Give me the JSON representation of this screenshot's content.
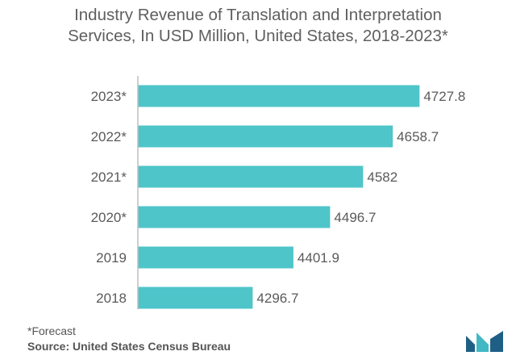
{
  "chart_data": {
    "type": "bar",
    "orientation": "horizontal",
    "title_lines": [
      "Industry Revenue of Translation and Interpretation",
      "Services, In USD Million, United States, 2018-2023*"
    ],
    "categories": [
      "2023*",
      "2022*",
      "2021*",
      "2020*",
      "2019",
      "2018"
    ],
    "values": [
      4727.8,
      4658.7,
      4582,
      4496.7,
      4401.9,
      4296.7
    ],
    "value_labels": [
      "4727.8",
      "4658.7",
      "4582",
      "4496.7",
      "4401.9",
      "4296.7"
    ],
    "xlim": [
      4000,
      4800
    ],
    "grid": false,
    "legend": "none"
  },
  "footnote": "*Forecast",
  "source": {
    "label": "Source:",
    "text": "United States Census Bureau"
  },
  "colors": {
    "bar": "#4ec5c9",
    "axis": "#bdbdbd",
    "text": "#5a5a5a",
    "logo_dark": "#1f5f86",
    "logo_light": "#41b8c4"
  },
  "logo": {
    "icon": "mordor-logo-icon"
  }
}
